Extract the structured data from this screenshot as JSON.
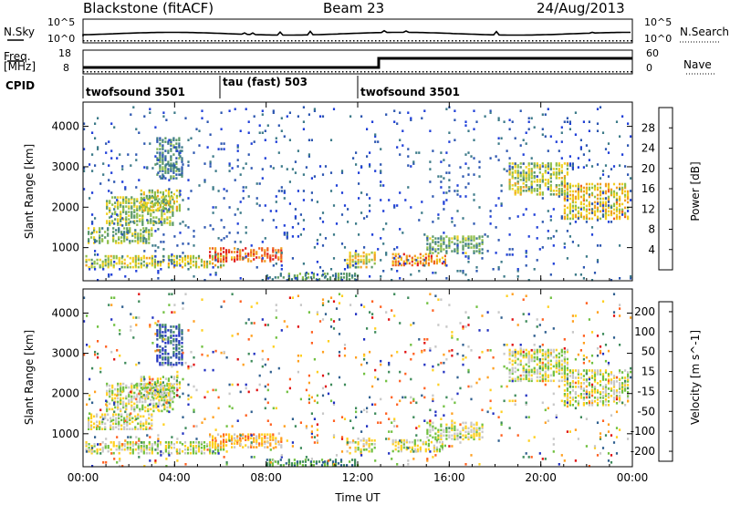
{
  "header": {
    "station": "Blackstone (fitACF)",
    "beam": "Beam 23",
    "date": "24/Aug/2013"
  },
  "status_panels": {
    "nsky_label": "N.Sky",
    "nsky_ticks": [
      "10^5",
      "10^0"
    ],
    "nsearch_label": "N.Search",
    "nsearch_ticks": [
      "10^5",
      "10^0"
    ],
    "freq_label": "Freq.",
    "freq_unit": "[MHz]",
    "freq_ticks": [
      "18",
      "8"
    ],
    "nave_label": "Nave",
    "nave_ticks": [
      "60",
      "0"
    ],
    "cpid_label": "CPID",
    "cpid_segments": [
      {
        "label": "twofsound 3501",
        "start_hour": 0
      },
      {
        "label": "tau (fast) 503",
        "start_hour": 6
      },
      {
        "label": "twofsound 3501",
        "start_hour": 12
      }
    ]
  },
  "chart_data": [
    {
      "type": "heatmap",
      "name": "power",
      "xlabel": "Time UT",
      "ylabel": "Slant Range [km]",
      "xlim": [
        0,
        24
      ],
      "ylim": [
        180,
        4600
      ],
      "x_ticks": [
        "00:00",
        "04:00",
        "08:00",
        "12:00",
        "16:00",
        "20:00",
        "00:00"
      ],
      "y_ticks": [
        "1000",
        "2000",
        "3000",
        "4000"
      ],
      "colorbar": {
        "label": "Power [dB]",
        "ticks": [
          "4",
          "8",
          "12",
          "16",
          "20",
          "24",
          "28"
        ],
        "colors": [
          "#1f3fd8",
          "#2c56b0",
          "#3c7a88",
          "#5a9868",
          "#8fbf4a",
          "#f0d020",
          "#f0a020",
          "#ee6020",
          "#e02020"
        ]
      },
      "regions": [
        {
          "t0": 0.2,
          "t1": 3.0,
          "r0": 1100,
          "r1": 1500,
          "level": 0.45
        },
        {
          "t0": 1.0,
          "t1": 4.0,
          "r0": 1550,
          "r1": 2250,
          "level": 0.5
        },
        {
          "t0": 2.5,
          "t1": 4.2,
          "r0": 1900,
          "r1": 2400,
          "level": 0.55
        },
        {
          "t0": 3.2,
          "t1": 4.4,
          "r0": 2700,
          "r1": 3700,
          "level": 0.3
        },
        {
          "t0": 0.1,
          "t1": 6.2,
          "r0": 500,
          "r1": 800,
          "level": 0.55
        },
        {
          "t0": 5.5,
          "t1": 8.7,
          "r0": 650,
          "r1": 1000,
          "level": 0.85
        },
        {
          "t0": 8.0,
          "t1": 12.0,
          "r0": 200,
          "r1": 380,
          "level": 0.35
        },
        {
          "t0": 11.5,
          "t1": 12.8,
          "r0": 500,
          "r1": 900,
          "level": 0.6
        },
        {
          "t0": 13.5,
          "t1": 15.8,
          "r0": 550,
          "r1": 850,
          "level": 0.8
        },
        {
          "t0": 15.0,
          "t1": 17.5,
          "r0": 850,
          "r1": 1300,
          "level": 0.4
        },
        {
          "t0": 18.6,
          "t1": 21.2,
          "r0": 2300,
          "r1": 3100,
          "level": 0.55
        },
        {
          "t0": 21.0,
          "t1": 23.8,
          "r0": 1700,
          "r1": 2600,
          "level": 0.65
        },
        {
          "t0": 0.0,
          "t1": 24.0,
          "r0": 2950,
          "r1": 3050,
          "level": 0.15
        },
        {
          "t0": 0.0,
          "t1": 24.0,
          "r0": 180,
          "r1": 4500,
          "level": 0.12
        }
      ]
    },
    {
      "type": "heatmap",
      "name": "velocity",
      "xlabel": "Time UT",
      "ylabel": "Slant Range [km]",
      "xlim": [
        0,
        24
      ],
      "ylim": [
        180,
        4600
      ],
      "x_ticks": [
        "00:00",
        "04:00",
        "08:00",
        "12:00",
        "16:00",
        "20:00",
        "00:00"
      ],
      "y_ticks": [
        "1000",
        "2000",
        "3000",
        "4000"
      ],
      "colorbar": {
        "label": "Velocity [m s^-1]",
        "ticks": [
          "200",
          "100",
          "50",
          "15",
          "-15",
          "-50",
          "-100",
          "-200"
        ],
        "colors": [
          "#2030c0",
          "#2f5f8f",
          "#3d8a5a",
          "#70c040",
          "#c8c8c8",
          "#ffd020",
          "#ffa020",
          "#ff6020",
          "#e01010"
        ]
      },
      "regions": [
        {
          "t0": 0.2,
          "t1": 3.0,
          "r0": 1100,
          "r1": 1500,
          "level": 0.5
        },
        {
          "t0": 1.0,
          "t1": 4.0,
          "r0": 1550,
          "r1": 2250,
          "level": 0.5
        },
        {
          "t0": 2.5,
          "t1": 4.2,
          "r0": 1900,
          "r1": 2400,
          "level": 0.45
        },
        {
          "t0": 3.2,
          "t1": 4.4,
          "r0": 2700,
          "r1": 3700,
          "level": 0.1
        },
        {
          "t0": 0.1,
          "t1": 6.2,
          "r0": 500,
          "r1": 800,
          "level": 0.5
        },
        {
          "t0": 5.5,
          "t1": 8.7,
          "r0": 650,
          "r1": 1000,
          "level": 0.7
        },
        {
          "t0": 8.0,
          "t1": 12.0,
          "r0": 200,
          "r1": 380,
          "level": 0.25
        },
        {
          "t0": 11.5,
          "t1": 12.8,
          "r0": 500,
          "r1": 900,
          "level": 0.55
        },
        {
          "t0": 13.5,
          "t1": 15.8,
          "r0": 550,
          "r1": 850,
          "level": 0.5
        },
        {
          "t0": 15.0,
          "t1": 17.5,
          "r0": 850,
          "r1": 1300,
          "level": 0.5
        },
        {
          "t0": 18.6,
          "t1": 21.2,
          "r0": 2300,
          "r1": 3100,
          "level": 0.5
        },
        {
          "t0": 21.0,
          "t1": 23.8,
          "r0": 1700,
          "r1": 2600,
          "level": 0.5
        },
        {
          "t0": 0.0,
          "t1": 24.0,
          "r0": 2950,
          "r1": 3050,
          "level": 0.75
        },
        {
          "t0": 0.0,
          "t1": 24.0,
          "r0": 180,
          "r1": 4500,
          "level": 0.5
        }
      ]
    }
  ]
}
